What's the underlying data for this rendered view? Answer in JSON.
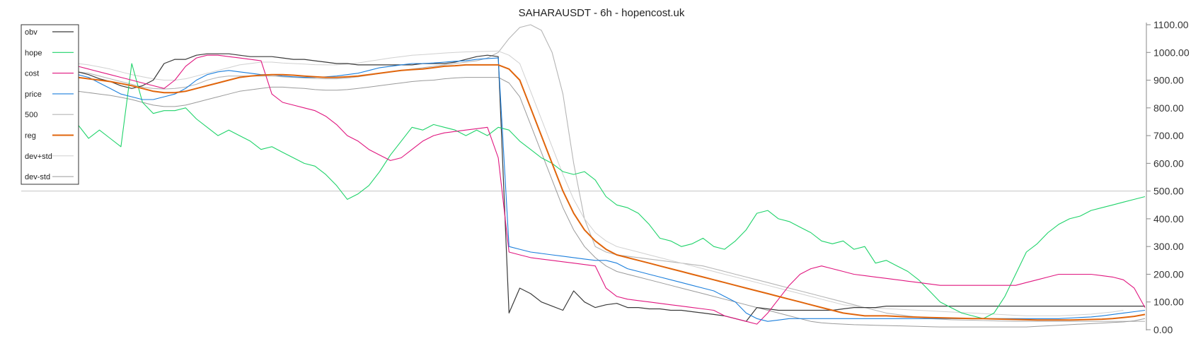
{
  "chart_data": {
    "type": "line",
    "title": "SAHARAUSDT - 6h - hopencost.uk",
    "ylim": [
      0,
      1100
    ],
    "yticks": [
      "0.00",
      "100.00",
      "200.00",
      "300.00",
      "400.00",
      "500.00",
      "600.00",
      "700.00",
      "800.00",
      "900.00",
      "1000.00",
      "1100.00"
    ],
    "reference_line": 500,
    "legend_position": "top-left",
    "n_points": 100,
    "series": [
      {
        "name": "obv",
        "color": "#3a3a3a",
        "width": 1.2,
        "values": [
          930,
          920,
          905,
          895,
          880,
          870,
          880,
          900,
          960,
          975,
          975,
          990,
          995,
          995,
          995,
          990,
          985,
          985,
          985,
          980,
          975,
          975,
          970,
          965,
          960,
          960,
          955,
          955,
          955,
          955,
          955,
          955,
          960,
          960,
          960,
          965,
          975,
          985,
          990,
          985,
          60,
          150,
          130,
          100,
          85,
          70,
          140,
          100,
          80,
          90,
          95,
          80,
          80,
          75,
          75,
          70,
          70,
          65,
          60,
          55,
          50,
          40,
          30,
          80,
          75,
          70,
          70,
          70,
          70,
          70,
          70,
          75,
          80,
          80,
          80,
          85,
          85,
          85,
          85,
          85,
          85,
          85,
          85,
          85,
          85,
          85,
          85,
          85,
          85,
          85,
          85,
          85,
          85,
          85,
          85,
          85,
          85,
          85,
          85,
          85
        ]
      },
      {
        "name": "hope",
        "color": "#1fd36a",
        "width": 1.1,
        "values": [
          740,
          690,
          720,
          690,
          660,
          960,
          820,
          780,
          790,
          790,
          800,
          760,
          730,
          700,
          720,
          700,
          680,
          650,
          660,
          640,
          620,
          600,
          590,
          560,
          520,
          470,
          490,
          520,
          570,
          630,
          680,
          730,
          720,
          740,
          730,
          720,
          700,
          720,
          700,
          730,
          720,
          680,
          650,
          620,
          600,
          570,
          560,
          570,
          540,
          480,
          450,
          440,
          420,
          380,
          330,
          320,
          300,
          310,
          330,
          300,
          290,
          320,
          360,
          420,
          430,
          400,
          390,
          370,
          350,
          320,
          310,
          320,
          290,
          300,
          240,
          250,
          230,
          210,
          180,
          140,
          100,
          80,
          60,
          50,
          40,
          60,
          120,
          200,
          280,
          310,
          350,
          380,
          400,
          410,
          430,
          440,
          450,
          460,
          470,
          480
        ]
      },
      {
        "name": "cost",
        "color": "#e0167f",
        "width": 1.1,
        "values": [
          950,
          940,
          930,
          920,
          910,
          900,
          890,
          880,
          870,
          900,
          950,
          980,
          990,
          990,
          985,
          980,
          975,
          970,
          850,
          820,
          810,
          800,
          790,
          770,
          740,
          700,
          680,
          650,
          630,
          610,
          620,
          650,
          680,
          700,
          710,
          715,
          720,
          725,
          730,
          620,
          280,
          270,
          260,
          255,
          250,
          245,
          240,
          235,
          230,
          150,
          120,
          110,
          105,
          100,
          95,
          90,
          85,
          80,
          75,
          70,
          50,
          40,
          30,
          20,
          60,
          110,
          160,
          200,
          220,
          230,
          220,
          210,
          200,
          195,
          190,
          185,
          180,
          175,
          170,
          165,
          160,
          160,
          160,
          160,
          160,
          160,
          160,
          160,
          170,
          180,
          190,
          200,
          200,
          200,
          200,
          195,
          190,
          180,
          150,
          80
        ]
      },
      {
        "name": "price",
        "color": "#1c7fdc",
        "width": 1.1,
        "values": [
          920,
          910,
          890,
          870,
          850,
          840,
          830,
          830,
          840,
          850,
          870,
          900,
          920,
          930,
          935,
          930,
          925,
          920,
          920,
          915,
          912,
          910,
          910,
          912,
          915,
          920,
          925,
          935,
          945,
          950,
          955,
          960,
          960,
          962,
          965,
          968,
          970,
          975,
          978,
          980,
          300,
          290,
          280,
          275,
          270,
          265,
          260,
          255,
          250,
          250,
          240,
          220,
          210,
          200,
          190,
          180,
          170,
          160,
          150,
          140,
          120,
          100,
          60,
          40,
          30,
          35,
          40,
          40,
          40,
          40,
          40,
          40,
          40,
          40,
          40,
          40,
          40,
          40,
          40,
          40,
          40,
          40,
          40,
          40,
          40,
          40,
          40,
          40,
          40,
          40,
          40,
          40,
          42,
          44,
          46,
          50,
          55,
          60,
          65,
          70
        ]
      },
      {
        "name": "500",
        "color": "#b5b5b5",
        "width": 1.1,
        "values": [
          930,
          925,
          915,
          905,
          895,
          885,
          875,
          870,
          868,
          870,
          875,
          885,
          900,
          910,
          915,
          915,
          915,
          915,
          915,
          912,
          910,
          908,
          906,
          905,
          905,
          908,
          912,
          918,
          924,
          930,
          935,
          940,
          945,
          950,
          955,
          960,
          965,
          970,
          980,
          1000,
          1050,
          1090,
          1100,
          1080,
          1000,
          850,
          600,
          400,
          300,
          280,
          270,
          265,
          260,
          255,
          250,
          245,
          240,
          235,
          230,
          220,
          210,
          200,
          190,
          180,
          170,
          160,
          150,
          140,
          130,
          120,
          110,
          100,
          90,
          80,
          70,
          60,
          55,
          50,
          45,
          40,
          38,
          36,
          35,
          34,
          33,
          32,
          31,
          30,
          30,
          30,
          30,
          30,
          30,
          30,
          30,
          30,
          30,
          30,
          30,
          30
        ]
      },
      {
        "name": "reg",
        "color": "#e0650c",
        "width": 2.0,
        "values": [
          910,
          905,
          900,
          895,
          888,
          880,
          870,
          860,
          855,
          855,
          860,
          870,
          880,
          890,
          900,
          910,
          915,
          918,
          920,
          920,
          918,
          915,
          912,
          910,
          910,
          912,
          915,
          920,
          925,
          930,
          935,
          938,
          940,
          945,
          950,
          952,
          955,
          955,
          955,
          955,
          940,
          900,
          800,
          700,
          600,
          500,
          420,
          360,
          320,
          290,
          270,
          260,
          250,
          240,
          230,
          220,
          210,
          200,
          190,
          180,
          170,
          160,
          150,
          140,
          130,
          120,
          110,
          100,
          90,
          80,
          70,
          60,
          55,
          50,
          50,
          50,
          48,
          46,
          45,
          44,
          43,
          42,
          41,
          40,
          40,
          39,
          38,
          37,
          36,
          35,
          35,
          35,
          35,
          36,
          37,
          38,
          40,
          44,
          48,
          55
        ]
      },
      {
        "name": "dev+std",
        "color": "#d0d0d0",
        "width": 1.0,
        "values": [
          960,
          955,
          948,
          940,
          930,
          920,
          912,
          905,
          900,
          900,
          905,
          915,
          925,
          935,
          945,
          955,
          960,
          965,
          965,
          962,
          960,
          958,
          956,
          955,
          955,
          958,
          962,
          968,
          974,
          980,
          985,
          990,
          992,
          995,
          998,
          1000,
          1002,
          1003,
          1004,
          1005,
          990,
          960,
          860,
          760,
          660,
          560,
          470,
          400,
          350,
          320,
          300,
          290,
          280,
          270,
          260,
          250,
          240,
          230,
          220,
          210,
          200,
          190,
          180,
          170,
          160,
          150,
          140,
          130,
          120,
          110,
          100,
          90,
          85,
          80,
          78,
          76,
          74,
          72,
          70,
          68,
          66,
          64,
          62,
          60,
          58,
          56,
          54,
          52,
          50,
          50,
          50,
          50,
          52,
          54,
          56,
          60,
          64,
          70
        ]
      },
      {
        "name": "dev-std",
        "color": "#9a9a9a",
        "width": 1.0,
        "values": [
          860,
          855,
          850,
          845,
          838,
          830,
          820,
          810,
          805,
          805,
          810,
          820,
          830,
          840,
          850,
          860,
          865,
          870,
          875,
          875,
          872,
          870,
          866,
          864,
          864,
          866,
          870,
          875,
          880,
          885,
          890,
          895,
          898,
          900,
          905,
          908,
          910,
          910,
          910,
          910,
          890,
          840,
          740,
          640,
          540,
          440,
          360,
          300,
          260,
          230,
          210,
          200,
          190,
          180,
          170,
          160,
          150,
          140,
          130,
          120,
          110,
          100,
          90,
          80,
          70,
          60,
          50,
          40,
          30,
          25,
          22,
          20,
          18,
          17,
          16,
          15,
          14,
          13,
          12,
          11,
          10,
          10,
          10,
          10,
          10,
          10,
          10,
          10,
          10,
          12,
          14,
          16,
          18,
          20,
          22,
          24,
          26,
          28,
          32,
          40
        ]
      }
    ]
  }
}
